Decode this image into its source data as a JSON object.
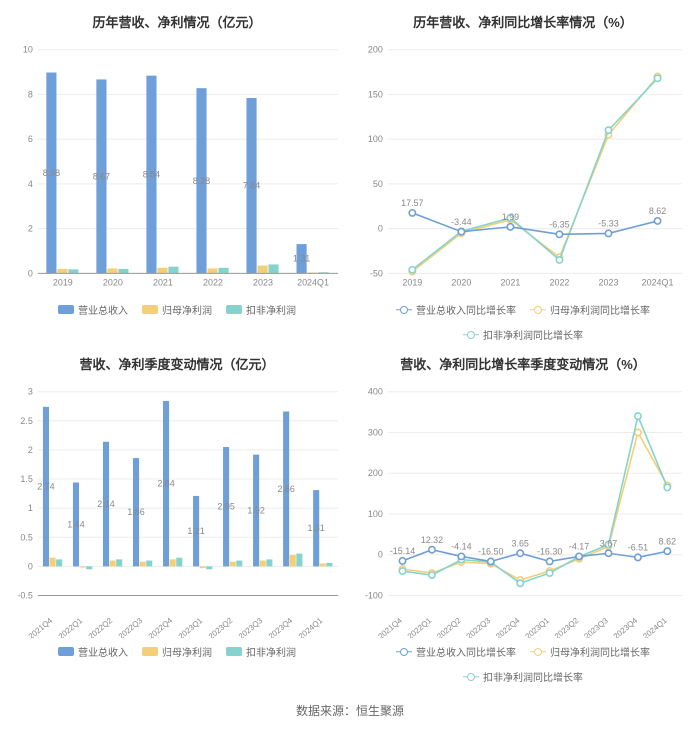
{
  "source_label": "数据来源：恒生聚源",
  "colors": {
    "series1": "#6f9fd8",
    "series2": "#f3cf78",
    "series3": "#86d3cd",
    "grid": "#edecec",
    "axis": "#999999",
    "text": "#888888",
    "bg": "#ffffff"
  },
  "panel_tl": {
    "title": "历年营收、净利情况（亿元）",
    "type": "bar",
    "categories": [
      "2019",
      "2020",
      "2021",
      "2022",
      "2023",
      "2024Q1"
    ],
    "series": [
      {
        "name": "营业总收入",
        "color": "#6f9fd8",
        "values": [
          8.98,
          8.67,
          8.84,
          8.28,
          7.84,
          1.31
        ]
      },
      {
        "name": "归母净利润",
        "color": "#f3cf78",
        "values": [
          0.2,
          0.22,
          0.25,
          0.22,
          0.35,
          0.04
        ]
      },
      {
        "name": "扣非净利润",
        "color": "#86d3cd",
        "values": [
          0.18,
          0.2,
          0.3,
          0.25,
          0.4,
          0.05
        ]
      }
    ],
    "ylim": [
      0,
      10
    ],
    "ytick_step": 2,
    "bar_value_labels": true,
    "bar_width": 0.66,
    "label_fontsize": 9,
    "grid_color": "#edecec"
  },
  "panel_tr": {
    "title": "历年营收、净利同比增长率情况（%）",
    "type": "line",
    "categories": [
      "2019",
      "2020",
      "2021",
      "2022",
      "2023",
      "2024Q1"
    ],
    "series": [
      {
        "name": "营业总收入同比增长率",
        "color": "#6f9fd8",
        "values": [
          17.57,
          -3.44,
          1.99,
          -6.35,
          -5.33,
          8.62
        ]
      },
      {
        "name": "归母净利润同比增长率",
        "color": "#f3cf78",
        "values": [
          -48,
          -5,
          10,
          -32,
          105,
          170
        ]
      },
      {
        "name": "扣非净利润同比增长率",
        "color": "#86d3cd",
        "values": [
          -46,
          -3,
          12,
          -35,
          110,
          168
        ]
      }
    ],
    "ylim": [
      -50,
      200
    ],
    "ytick_step": 50,
    "point_labels_series": 0,
    "grid_color": "#edecec"
  },
  "panel_bl": {
    "title": "营收、净利季度变动情况（亿元）",
    "type": "bar",
    "categories": [
      "2021Q4",
      "2022Q1",
      "2022Q2",
      "2022Q3",
      "2022Q4",
      "2023Q1",
      "2023Q2",
      "2023Q3",
      "2023Q4",
      "2024Q1"
    ],
    "series": [
      {
        "name": "营业总收入",
        "color": "#6f9fd8",
        "values": [
          2.74,
          1.44,
          2.14,
          1.86,
          2.84,
          1.21,
          2.05,
          1.92,
          2.66,
          1.31
        ]
      },
      {
        "name": "归母净利润",
        "color": "#f3cf78",
        "values": [
          0.15,
          -0.02,
          0.1,
          0.08,
          0.12,
          -0.03,
          0.08,
          0.1,
          0.2,
          0.05
        ]
      },
      {
        "name": "扣非净利润",
        "color": "#86d3cd",
        "values": [
          0.12,
          -0.05,
          0.12,
          0.1,
          0.15,
          -0.05,
          0.1,
          0.12,
          0.22,
          0.06
        ]
      }
    ],
    "ylim": [
      -0.5,
      3
    ],
    "ytick_step": 0.5,
    "bar_value_labels": true,
    "bar_width": 0.66,
    "label_rotate": true
  },
  "panel_br": {
    "title": "营收、净利同比增长率季度变动情况（%）",
    "type": "line",
    "categories": [
      "2021Q4",
      "2022Q1",
      "2022Q2",
      "2022Q3",
      "2022Q4",
      "2023Q1",
      "2023Q2",
      "2023Q3",
      "2023Q4",
      "2024Q1"
    ],
    "series": [
      {
        "name": "营业总收入同比增长率",
        "color": "#6f9fd8",
        "values": [
          -15.14,
          12.32,
          -4.14,
          -16.5,
          3.65,
          -16.3,
          -4.17,
          3.67,
          -6.51,
          8.62
        ]
      },
      {
        "name": "归母净利润同比增长率",
        "color": "#f3cf78",
        "values": [
          -35,
          -45,
          -18,
          -22,
          -62,
          -40,
          -10,
          20,
          300,
          170
        ]
      },
      {
        "name": "扣非净利润同比增长率",
        "color": "#86d3cd",
        "values": [
          -40,
          -50,
          -12,
          -18,
          -70,
          -45,
          -5,
          25,
          340,
          165
        ]
      }
    ],
    "ylim": [
      -100,
      400
    ],
    "ytick_step": 100,
    "point_labels_series": 0,
    "label_rotate": true
  },
  "legends": {
    "bar": [
      "营业总收入",
      "归母净利润",
      "扣非净利润"
    ],
    "line": [
      "营业总收入同比增长率",
      "归母净利润同比增长率",
      "扣非净利润同比增长率"
    ]
  }
}
